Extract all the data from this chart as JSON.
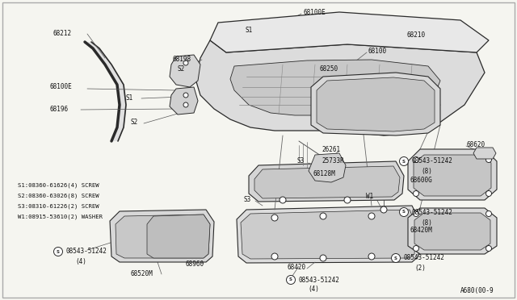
{
  "bg_color": "#f5f5f0",
  "line_color": "#2a2a2a",
  "text_color": "#111111",
  "fig_width": 6.4,
  "fig_height": 3.72,
  "diagram_code": "A680(00-9",
  "border_color": "#999999",
  "part_fill": "#e2e2e2",
  "part_fill2": "#d0d0d0",
  "part_fill3": "#c8c8c8",
  "legend_lines": [
    "S1:08360-61626(4) SCREW",
    "S2:08360-63026(8) SCREW",
    "S3:08310-61226(2) SCREW",
    "W1:08915-53610(2) WASHER"
  ]
}
